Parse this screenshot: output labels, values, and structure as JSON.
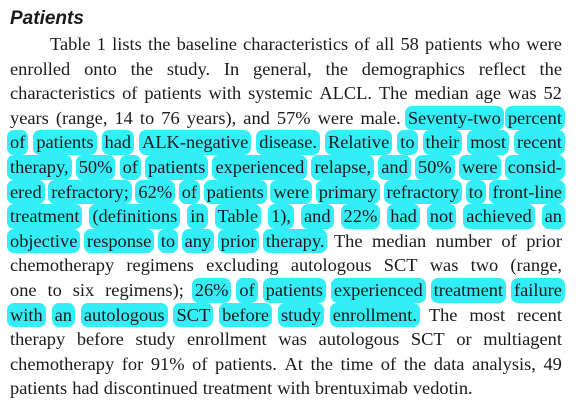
{
  "section": {
    "heading": "Patients"
  },
  "paragraph": {
    "lines": [
      {
        "words": [
          "Table",
          "1",
          "lists",
          "the",
          "baseline",
          "characteristics",
          "of",
          "all",
          "58",
          "patients",
          "who",
          "were"
        ]
      },
      {
        "words": [
          "enrolled",
          "onto",
          "the",
          "study.",
          "In",
          "general,",
          "the",
          "demographics",
          "reflect",
          "the"
        ]
      },
      {
        "words": [
          "characteristics",
          "of",
          "patients",
          "with",
          "systemic",
          "ALCL.",
          "The",
          "median",
          "age",
          "was",
          "52"
        ]
      },
      {
        "words": [
          "years",
          "(range,",
          "14",
          "to",
          "76",
          "years),",
          "and",
          "57%",
          "were",
          "male.",
          "Seventy-two",
          "percent"
        ]
      },
      {
        "words": [
          "of",
          "patients",
          "had",
          "ALK-negative",
          "disease.",
          "Relative",
          "to",
          "their",
          "most",
          "recent"
        ]
      },
      {
        "words": [
          "therapy,",
          "50%",
          "of",
          "patients",
          "experienced",
          "relapse,",
          "and",
          "50%",
          "were",
          "consid-"
        ]
      },
      {
        "words": [
          "ered",
          "refractory;",
          "62%",
          "of",
          "patients",
          "were",
          "primary",
          "refractory",
          "to",
          "front-line"
        ]
      },
      {
        "words": [
          "treatment",
          "(definitions",
          "in",
          "Table",
          "1),",
          "and",
          "22%",
          "had",
          "not",
          "achieved",
          "an"
        ]
      },
      {
        "words": [
          "objective",
          "response",
          "to",
          "any",
          "prior",
          "therapy.",
          "The",
          "median",
          "number",
          "of",
          "prior"
        ]
      },
      {
        "words": [
          "chemotherapy",
          "regimens",
          "excluding",
          "autologous",
          "SCT",
          "was",
          "two",
          "(range,"
        ]
      },
      {
        "words": [
          "one",
          "to",
          "six",
          "regimens);",
          "26%",
          "of",
          "patients",
          "experienced",
          "treatment",
          "failure"
        ]
      },
      {
        "words": [
          "with",
          "an",
          "autologous",
          "SCT",
          "before",
          "study",
          "enrollment.",
          "The",
          "most",
          "recent"
        ]
      },
      {
        "words": [
          "therapy",
          "before",
          "study",
          "enrollment",
          "was",
          "autologous",
          "SCT",
          "or",
          "multiagent"
        ]
      },
      {
        "words": [
          "chemotherapy",
          "for",
          "91%",
          "of",
          "patients.",
          "At",
          "the",
          "time",
          "of",
          "the",
          "data",
          "analysis,",
          "49"
        ]
      },
      {
        "words": [
          "patients",
          "had",
          "discontinued",
          "treatment",
          "with",
          "brentuximab",
          "vedotin."
        ]
      }
    ],
    "highlight_color": "#33eef6"
  }
}
